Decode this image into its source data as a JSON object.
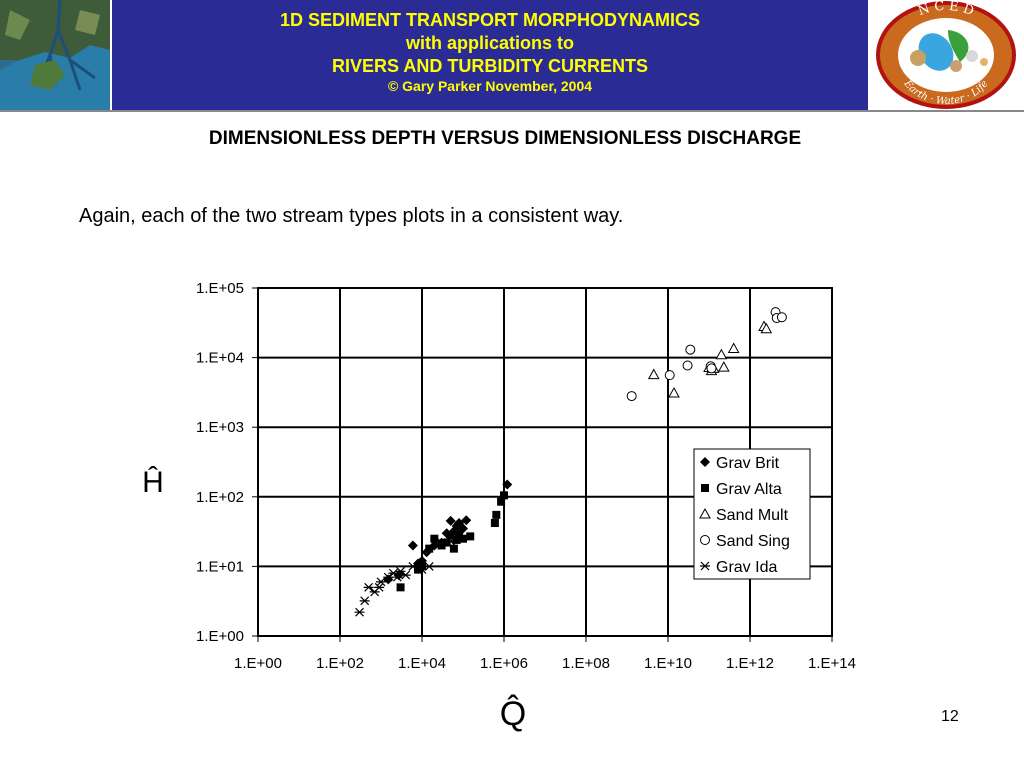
{
  "header": {
    "line1": "1D SEDIMENT TRANSPORT MORPHODYNAMICS",
    "line2": "with applications to",
    "line3": "RIVERS AND TURBIDITY CURRENTS",
    "copyright": "© Gary Parker November, 2004",
    "logo_letters": "N C E D",
    "logo_ring_text": "Earth · Water · Life",
    "banner_color": "#2b2b96",
    "text_color": "#ffff00"
  },
  "slide": {
    "title": "DIMENSIONLESS DEPTH VERSUS DIMENSIONLESS DISCHARGE",
    "subtitle": "Again, each of the two stream types plots in a consistent way.",
    "page_number": "12"
  },
  "chart_data": {
    "type": "scatter",
    "xlabel": "Q̂",
    "ylabel": "Ĥ",
    "x_scale": "log",
    "y_scale": "log",
    "xlim": [
      1,
      100000000000000.0
    ],
    "ylim": [
      1,
      100000.0
    ],
    "x_ticks": [
      "1.E+00",
      "1.E+02",
      "1.E+04",
      "1.E+06",
      "1.E+08",
      "1.E+10",
      "1.E+12",
      "1.E+14"
    ],
    "y_ticks": [
      "1.E+00",
      "1.E+01",
      "1.E+02",
      "1.E+03",
      "1.E+04",
      "1.E+05"
    ],
    "grid": true,
    "legend_position": "right-middle",
    "series": [
      {
        "name": "Grav Brit",
        "marker": "diamond",
        "points": [
          [
            1500.0,
            6.5
          ],
          [
            2700.0,
            7.5
          ],
          [
            6000.0,
            20
          ],
          [
            8000.0,
            11
          ],
          [
            10000.0,
            12
          ],
          [
            13000.0,
            16
          ],
          [
            20000.0,
            20
          ],
          [
            30000.0,
            22
          ],
          [
            40000.0,
            30
          ],
          [
            50000.0,
            45
          ],
          [
            60000.0,
            32
          ],
          [
            70000.0,
            38
          ],
          [
            80000.0,
            42
          ],
          [
            100000.0,
            35
          ],
          [
            120000.0,
            46
          ],
          [
            1200000.0,
            150
          ]
        ]
      },
      {
        "name": "Grav Alta",
        "marker": "square",
        "points": [
          [
            3000.0,
            5
          ],
          [
            8000.0,
            9
          ],
          [
            10000.0,
            10
          ],
          [
            15000.0,
            18
          ],
          [
            20000.0,
            25
          ],
          [
            30000.0,
            20
          ],
          [
            40000.0,
            22
          ],
          [
            50000.0,
            28
          ],
          [
            60000.0,
            18
          ],
          [
            70000.0,
            24
          ],
          [
            80000.0,
            30
          ],
          [
            100000.0,
            25
          ],
          [
            150000.0,
            27
          ],
          [
            600000.0,
            42
          ],
          [
            650000.0,
            55
          ],
          [
            850000.0,
            85
          ],
          [
            1000000.0,
            105
          ]
        ]
      },
      {
        "name": "Sand Mult",
        "marker": "triangle",
        "points": [
          [
            4500000000.0,
            5700
          ],
          [
            14000000000.0,
            3100
          ],
          [
            100000000000.0,
            7200
          ],
          [
            115000000000.0,
            6500
          ],
          [
            130000000000.0,
            7000
          ],
          [
            200000000000.0,
            11000
          ],
          [
            230000000000.0,
            7300
          ],
          [
            400000000000.0,
            13500
          ],
          [
            2200000000000.0,
            28000
          ],
          [
            2500000000000.0,
            26000
          ]
        ]
      },
      {
        "name": "Sand Sing",
        "marker": "circle",
        "points": [
          [
            1300000000.0,
            2800
          ],
          [
            11000000000.0,
            5600
          ],
          [
            30000000000.0,
            7700
          ],
          [
            35000000000.0,
            13000
          ],
          [
            110000000000.0,
            7500
          ],
          [
            115000000000.0,
            7000
          ],
          [
            4200000000000.0,
            45000
          ],
          [
            4500000000000.0,
            37000
          ],
          [
            6000000000000.0,
            38000
          ]
        ]
      },
      {
        "name": "Grav Ida",
        "marker": "star",
        "points": [
          [
            300,
            2.2
          ],
          [
            400,
            3.2
          ],
          [
            500,
            5
          ],
          [
            700,
            4.3
          ],
          [
            900,
            5
          ],
          [
            1000.0,
            6
          ],
          [
            1500.0,
            7
          ],
          [
            2000.0,
            8
          ],
          [
            2500.0,
            7
          ],
          [
            3000.0,
            8.5
          ],
          [
            4000.0,
            7.5
          ],
          [
            6000.0,
            10
          ],
          [
            10000.0,
            9
          ],
          [
            15000.0,
            10
          ],
          [
            30000.0,
            22
          ],
          [
            50000.0,
            23
          ],
          [
            70000.0,
            25
          ]
        ]
      }
    ]
  }
}
